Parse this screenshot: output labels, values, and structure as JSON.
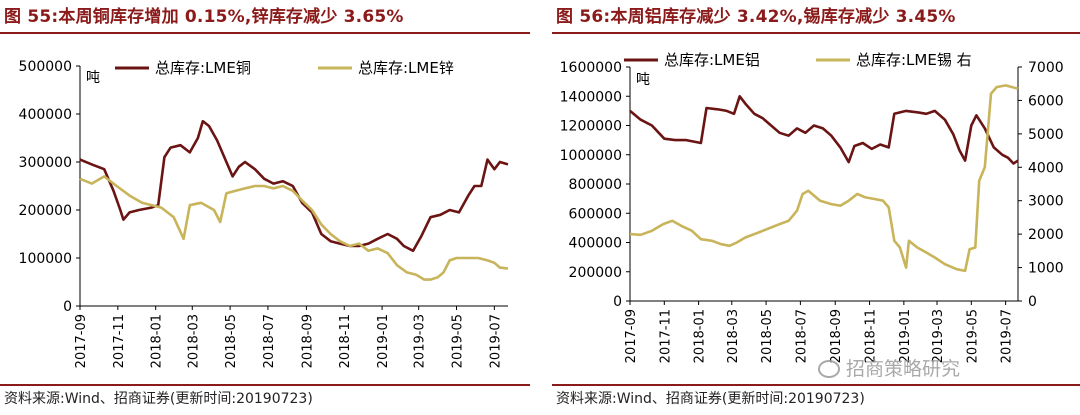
{
  "left_panel": {
    "title": "图 55:本周铜库存增加 0.15%,锌库存减少 3.65%",
    "source": "资料来源:Wind、招商证券(更新时间:20190723)"
  },
  "right_panel": {
    "title": "图 56:本周铝库存减少 3.42%,锡库存减少 3.45%",
    "source": "资料来源:Wind、招商证券(更新时间:20190723)"
  },
  "watermark": "招商策略研究",
  "chart_data": [
    {
      "type": "line",
      "unit_label": "吨",
      "x_ticks": [
        "2017-09",
        "2017-11",
        "2018-01",
        "2018-03",
        "2018-05",
        "2018-07",
        "2018-09",
        "2018-11",
        "2019-01",
        "2019-03",
        "2019-05",
        "2019-07"
      ],
      "x_range": [
        "2017-09-01",
        "2019-07-23"
      ],
      "ylim": [
        0,
        500000
      ],
      "y_ticks": [
        0,
        100000,
        200000,
        300000,
        400000,
        500000
      ],
      "legend_position": "top",
      "series": [
        {
          "name": "总库存:LME铜",
          "color": "#6b1414",
          "points": [
            [
              "2017-09-01",
              305000
            ],
            [
              "2017-09-20",
              295000
            ],
            [
              "2017-10-10",
              285000
            ],
            [
              "2017-10-25",
              240000
            ],
            [
              "2017-11-05",
              200000
            ],
            [
              "2017-11-10",
              180000
            ],
            [
              "2017-11-20",
              195000
            ],
            [
              "2017-12-05",
              200000
            ],
            [
              "2017-12-25",
              205000
            ],
            [
              "2018-01-05",
              210000
            ],
            [
              "2018-01-15",
              310000
            ],
            [
              "2018-01-25",
              330000
            ],
            [
              "2018-02-10",
              335000
            ],
            [
              "2018-02-25",
              320000
            ],
            [
              "2018-03-10",
              350000
            ],
            [
              "2018-03-18",
              385000
            ],
            [
              "2018-03-28",
              375000
            ],
            [
              "2018-04-10",
              345000
            ],
            [
              "2018-04-25",
              300000
            ],
            [
              "2018-05-05",
              270000
            ],
            [
              "2018-05-15",
              290000
            ],
            [
              "2018-05-25",
              300000
            ],
            [
              "2018-06-10",
              285000
            ],
            [
              "2018-06-25",
              265000
            ],
            [
              "2018-07-10",
              255000
            ],
            [
              "2018-07-25",
              260000
            ],
            [
              "2018-08-10",
              250000
            ],
            [
              "2018-08-25",
              215000
            ],
            [
              "2018-09-10",
              195000
            ],
            [
              "2018-09-25",
              150000
            ],
            [
              "2018-10-10",
              135000
            ],
            [
              "2018-10-25",
              130000
            ],
            [
              "2018-11-10",
              125000
            ],
            [
              "2018-11-25",
              125000
            ],
            [
              "2018-12-10",
              130000
            ],
            [
              "2018-12-25",
              140000
            ],
            [
              "2019-01-10",
              150000
            ],
            [
              "2019-01-25",
              140000
            ],
            [
              "2019-02-05",
              125000
            ],
            [
              "2019-02-20",
              115000
            ],
            [
              "2019-03-05",
              145000
            ],
            [
              "2019-03-20",
              185000
            ],
            [
              "2019-04-05",
              190000
            ],
            [
              "2019-04-20",
              200000
            ],
            [
              "2019-05-05",
              195000
            ],
            [
              "2019-05-20",
              230000
            ],
            [
              "2019-05-30",
              250000
            ],
            [
              "2019-06-10",
              250000
            ],
            [
              "2019-06-20",
              305000
            ],
            [
              "2019-07-01",
              285000
            ],
            [
              "2019-07-10",
              300000
            ],
            [
              "2019-07-23",
              295000
            ]
          ]
        },
        {
          "name": "总库存:LME锌",
          "color": "#c8b45a",
          "points": [
            [
              "2017-09-01",
              265000
            ],
            [
              "2017-09-20",
              255000
            ],
            [
              "2017-10-10",
              270000
            ],
            [
              "2017-10-30",
              250000
            ],
            [
              "2017-11-20",
              230000
            ],
            [
              "2017-12-10",
              215000
            ],
            [
              "2018-01-10",
              205000
            ],
            [
              "2018-01-30",
              185000
            ],
            [
              "2018-02-15",
              140000
            ],
            [
              "2018-02-25",
              210000
            ],
            [
              "2018-03-15",
              215000
            ],
            [
              "2018-04-05",
              200000
            ],
            [
              "2018-04-15",
              175000
            ],
            [
              "2018-04-25",
              235000
            ],
            [
              "2018-05-10",
              240000
            ],
            [
              "2018-05-25",
              245000
            ],
            [
              "2018-06-10",
              250000
            ],
            [
              "2018-06-25",
              250000
            ],
            [
              "2018-07-10",
              245000
            ],
            [
              "2018-07-25",
              250000
            ],
            [
              "2018-08-10",
              240000
            ],
            [
              "2018-08-25",
              220000
            ],
            [
              "2018-09-10",
              200000
            ],
            [
              "2018-09-25",
              170000
            ],
            [
              "2018-10-10",
              150000
            ],
            [
              "2018-10-25",
              135000
            ],
            [
              "2018-11-10",
              125000
            ],
            [
              "2018-11-25",
              130000
            ],
            [
              "2018-12-10",
              115000
            ],
            [
              "2018-12-25",
              120000
            ],
            [
              "2019-01-10",
              110000
            ],
            [
              "2019-01-25",
              85000
            ],
            [
              "2019-02-10",
              70000
            ],
            [
              "2019-02-25",
              65000
            ],
            [
              "2019-03-10",
              55000
            ],
            [
              "2019-03-20",
              55000
            ],
            [
              "2019-04-01",
              60000
            ],
            [
              "2019-04-10",
              70000
            ],
            [
              "2019-04-20",
              95000
            ],
            [
              "2019-05-01",
              100000
            ],
            [
              "2019-05-20",
              100000
            ],
            [
              "2019-06-05",
              100000
            ],
            [
              "2019-06-20",
              95000
            ],
            [
              "2019-07-01",
              90000
            ],
            [
              "2019-07-10",
              80000
            ],
            [
              "2019-07-23",
              78000
            ]
          ]
        }
      ]
    },
    {
      "type": "line",
      "unit_label": "吨",
      "x_ticks": [
        "2017-09",
        "2017-11",
        "2018-01",
        "2018-03",
        "2018-05",
        "2018-07",
        "2018-09",
        "2018-11",
        "2019-01",
        "2019-03",
        "2019-05",
        "2019-07"
      ],
      "x_range": [
        "2017-09-01",
        "2019-07-23"
      ],
      "ylim": [
        0,
        1600000
      ],
      "y_ticks": [
        0,
        200000,
        400000,
        600000,
        800000,
        1000000,
        1200000,
        1400000,
        1600000
      ],
      "y2lim": [
        0,
        7000
      ],
      "y2_ticks": [
        0,
        1000,
        2000,
        3000,
        4000,
        5000,
        6000,
        7000
      ],
      "legend_position": "top",
      "series": [
        {
          "name": "总库存:LME铝",
          "axis": "left",
          "color": "#6b1414",
          "points": [
            [
              "2017-09-01",
              1300000
            ],
            [
              "2017-09-20",
              1240000
            ],
            [
              "2017-10-10",
              1200000
            ],
            [
              "2017-11-01",
              1110000
            ],
            [
              "2017-11-20",
              1100000
            ],
            [
              "2017-12-10",
              1100000
            ],
            [
              "2018-01-05",
              1080000
            ],
            [
              "2018-01-15",
              1320000
            ],
            [
              "2018-02-05",
              1310000
            ],
            [
              "2018-02-20",
              1300000
            ],
            [
              "2018-03-05",
              1280000
            ],
            [
              "2018-03-15",
              1400000
            ],
            [
              "2018-03-25",
              1350000
            ],
            [
              "2018-04-10",
              1280000
            ],
            [
              "2018-04-25",
              1250000
            ],
            [
              "2018-05-10",
              1200000
            ],
            [
              "2018-05-25",
              1150000
            ],
            [
              "2018-06-10",
              1130000
            ],
            [
              "2018-06-25",
              1180000
            ],
            [
              "2018-07-10",
              1150000
            ],
            [
              "2018-07-25",
              1200000
            ],
            [
              "2018-08-10",
              1180000
            ],
            [
              "2018-08-25",
              1130000
            ],
            [
              "2018-09-10",
              1050000
            ],
            [
              "2018-09-25",
              950000
            ],
            [
              "2018-10-05",
              1060000
            ],
            [
              "2018-10-20",
              1080000
            ],
            [
              "2018-11-05",
              1040000
            ],
            [
              "2018-11-20",
              1070000
            ],
            [
              "2018-12-05",
              1050000
            ],
            [
              "2018-12-15",
              1280000
            ],
            [
              "2019-01-05",
              1300000
            ],
            [
              "2019-01-25",
              1290000
            ],
            [
              "2019-02-10",
              1280000
            ],
            [
              "2019-02-25",
              1300000
            ],
            [
              "2019-03-15",
              1240000
            ],
            [
              "2019-03-30",
              1140000
            ],
            [
              "2019-04-10",
              1030000
            ],
            [
              "2019-04-20",
              960000
            ],
            [
              "2019-05-01",
              1200000
            ],
            [
              "2019-05-10",
              1270000
            ],
            [
              "2019-05-25",
              1180000
            ],
            [
              "2019-06-10",
              1050000
            ],
            [
              "2019-06-25",
              1000000
            ],
            [
              "2019-07-05",
              980000
            ],
            [
              "2019-07-15",
              940000
            ],
            [
              "2019-07-23",
              960000
            ]
          ]
        },
        {
          "name": "总库存:LME锡 右",
          "axis": "right",
          "color": "#c8b45a",
          "points": [
            [
              "2017-09-01",
              2000
            ],
            [
              "2017-09-20",
              1980
            ],
            [
              "2017-10-10",
              2100
            ],
            [
              "2017-10-30",
              2300
            ],
            [
              "2017-11-15",
              2400
            ],
            [
              "2017-12-01",
              2250
            ],
            [
              "2017-12-20",
              2100
            ],
            [
              "2018-01-05",
              1850
            ],
            [
              "2018-01-25",
              1800
            ],
            [
              "2018-02-10",
              1700
            ],
            [
              "2018-02-25",
              1650
            ],
            [
              "2018-03-10",
              1750
            ],
            [
              "2018-03-25",
              1900
            ],
            [
              "2018-04-10",
              2000
            ],
            [
              "2018-04-25",
              2100
            ],
            [
              "2018-05-10",
              2200
            ],
            [
              "2018-05-25",
              2300
            ],
            [
              "2018-06-10",
              2400
            ],
            [
              "2018-06-25",
              2700
            ],
            [
              "2018-07-05",
              3200
            ],
            [
              "2018-07-15",
              3300
            ],
            [
              "2018-08-05",
              3000
            ],
            [
              "2018-08-25",
              2900
            ],
            [
              "2018-09-10",
              2850
            ],
            [
              "2018-09-25",
              3000
            ],
            [
              "2018-10-10",
              3200
            ],
            [
              "2018-10-25",
              3100
            ],
            [
              "2018-11-10",
              3050
            ],
            [
              "2018-11-25",
              3000
            ],
            [
              "2018-12-05",
              2800
            ],
            [
              "2018-12-15",
              1800
            ],
            [
              "2018-12-25",
              1600
            ],
            [
              "2019-01-05",
              1000
            ],
            [
              "2019-01-10",
              1800
            ],
            [
              "2019-01-25",
              1600
            ],
            [
              "2019-02-10",
              1450
            ],
            [
              "2019-02-25",
              1300
            ],
            [
              "2019-03-15",
              1100
            ],
            [
              "2019-04-05",
              950
            ],
            [
              "2019-04-20",
              900
            ],
            [
              "2019-04-28",
              1550
            ],
            [
              "2019-05-08",
              1600
            ],
            [
              "2019-05-15",
              3600
            ],
            [
              "2019-05-25",
              4000
            ],
            [
              "2019-06-05",
              6200
            ],
            [
              "2019-06-15",
              6400
            ],
            [
              "2019-07-01",
              6450
            ],
            [
              "2019-07-23",
              6350
            ]
          ]
        }
      ]
    }
  ]
}
